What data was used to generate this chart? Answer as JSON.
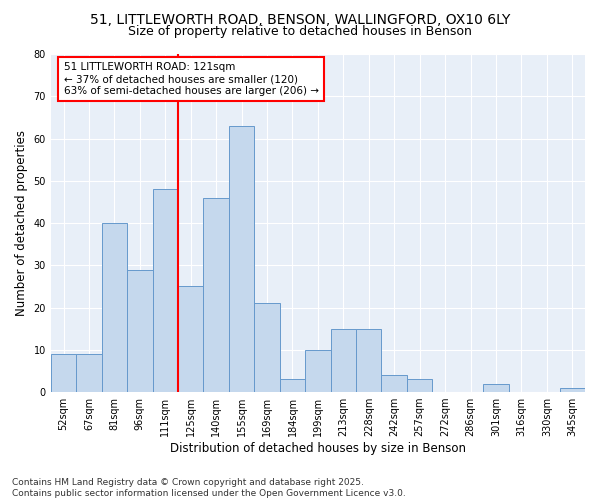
{
  "title_line1": "51, LITTLEWORTH ROAD, BENSON, WALLINGFORD, OX10 6LY",
  "title_line2": "Size of property relative to detached houses in Benson",
  "xlabel": "Distribution of detached houses by size in Benson",
  "ylabel": "Number of detached properties",
  "categories": [
    "52sqm",
    "67sqm",
    "81sqm",
    "96sqm",
    "111sqm",
    "125sqm",
    "140sqm",
    "155sqm",
    "169sqm",
    "184sqm",
    "199sqm",
    "213sqm",
    "228sqm",
    "242sqm",
    "257sqm",
    "272sqm",
    "286sqm",
    "301sqm",
    "316sqm",
    "330sqm",
    "345sqm"
  ],
  "values": [
    9,
    9,
    40,
    29,
    48,
    25,
    46,
    63,
    21,
    3,
    10,
    15,
    15,
    4,
    3,
    0,
    0,
    2,
    0,
    0,
    1
  ],
  "bar_color": "#c5d8ed",
  "bar_edge_color": "#6699cc",
  "vline_x": 5,
  "annotation_text": "51 LITTLEWORTH ROAD: 121sqm\n← 37% of detached houses are smaller (120)\n63% of semi-detached houses are larger (206) →",
  "annotation_box_color": "white",
  "annotation_box_edge": "red",
  "vline_color": "red",
  "ylim": [
    0,
    80
  ],
  "yticks": [
    0,
    10,
    20,
    30,
    40,
    50,
    60,
    70,
    80
  ],
  "footnote": "Contains HM Land Registry data © Crown copyright and database right 2025.\nContains public sector information licensed under the Open Government Licence v3.0.",
  "background_color": "#e8eff8",
  "grid_color": "white",
  "title_fontsize": 10,
  "subtitle_fontsize": 9,
  "tick_fontsize": 7,
  "label_fontsize": 8.5,
  "annotation_fontsize": 7.5,
  "footnote_fontsize": 6.5
}
